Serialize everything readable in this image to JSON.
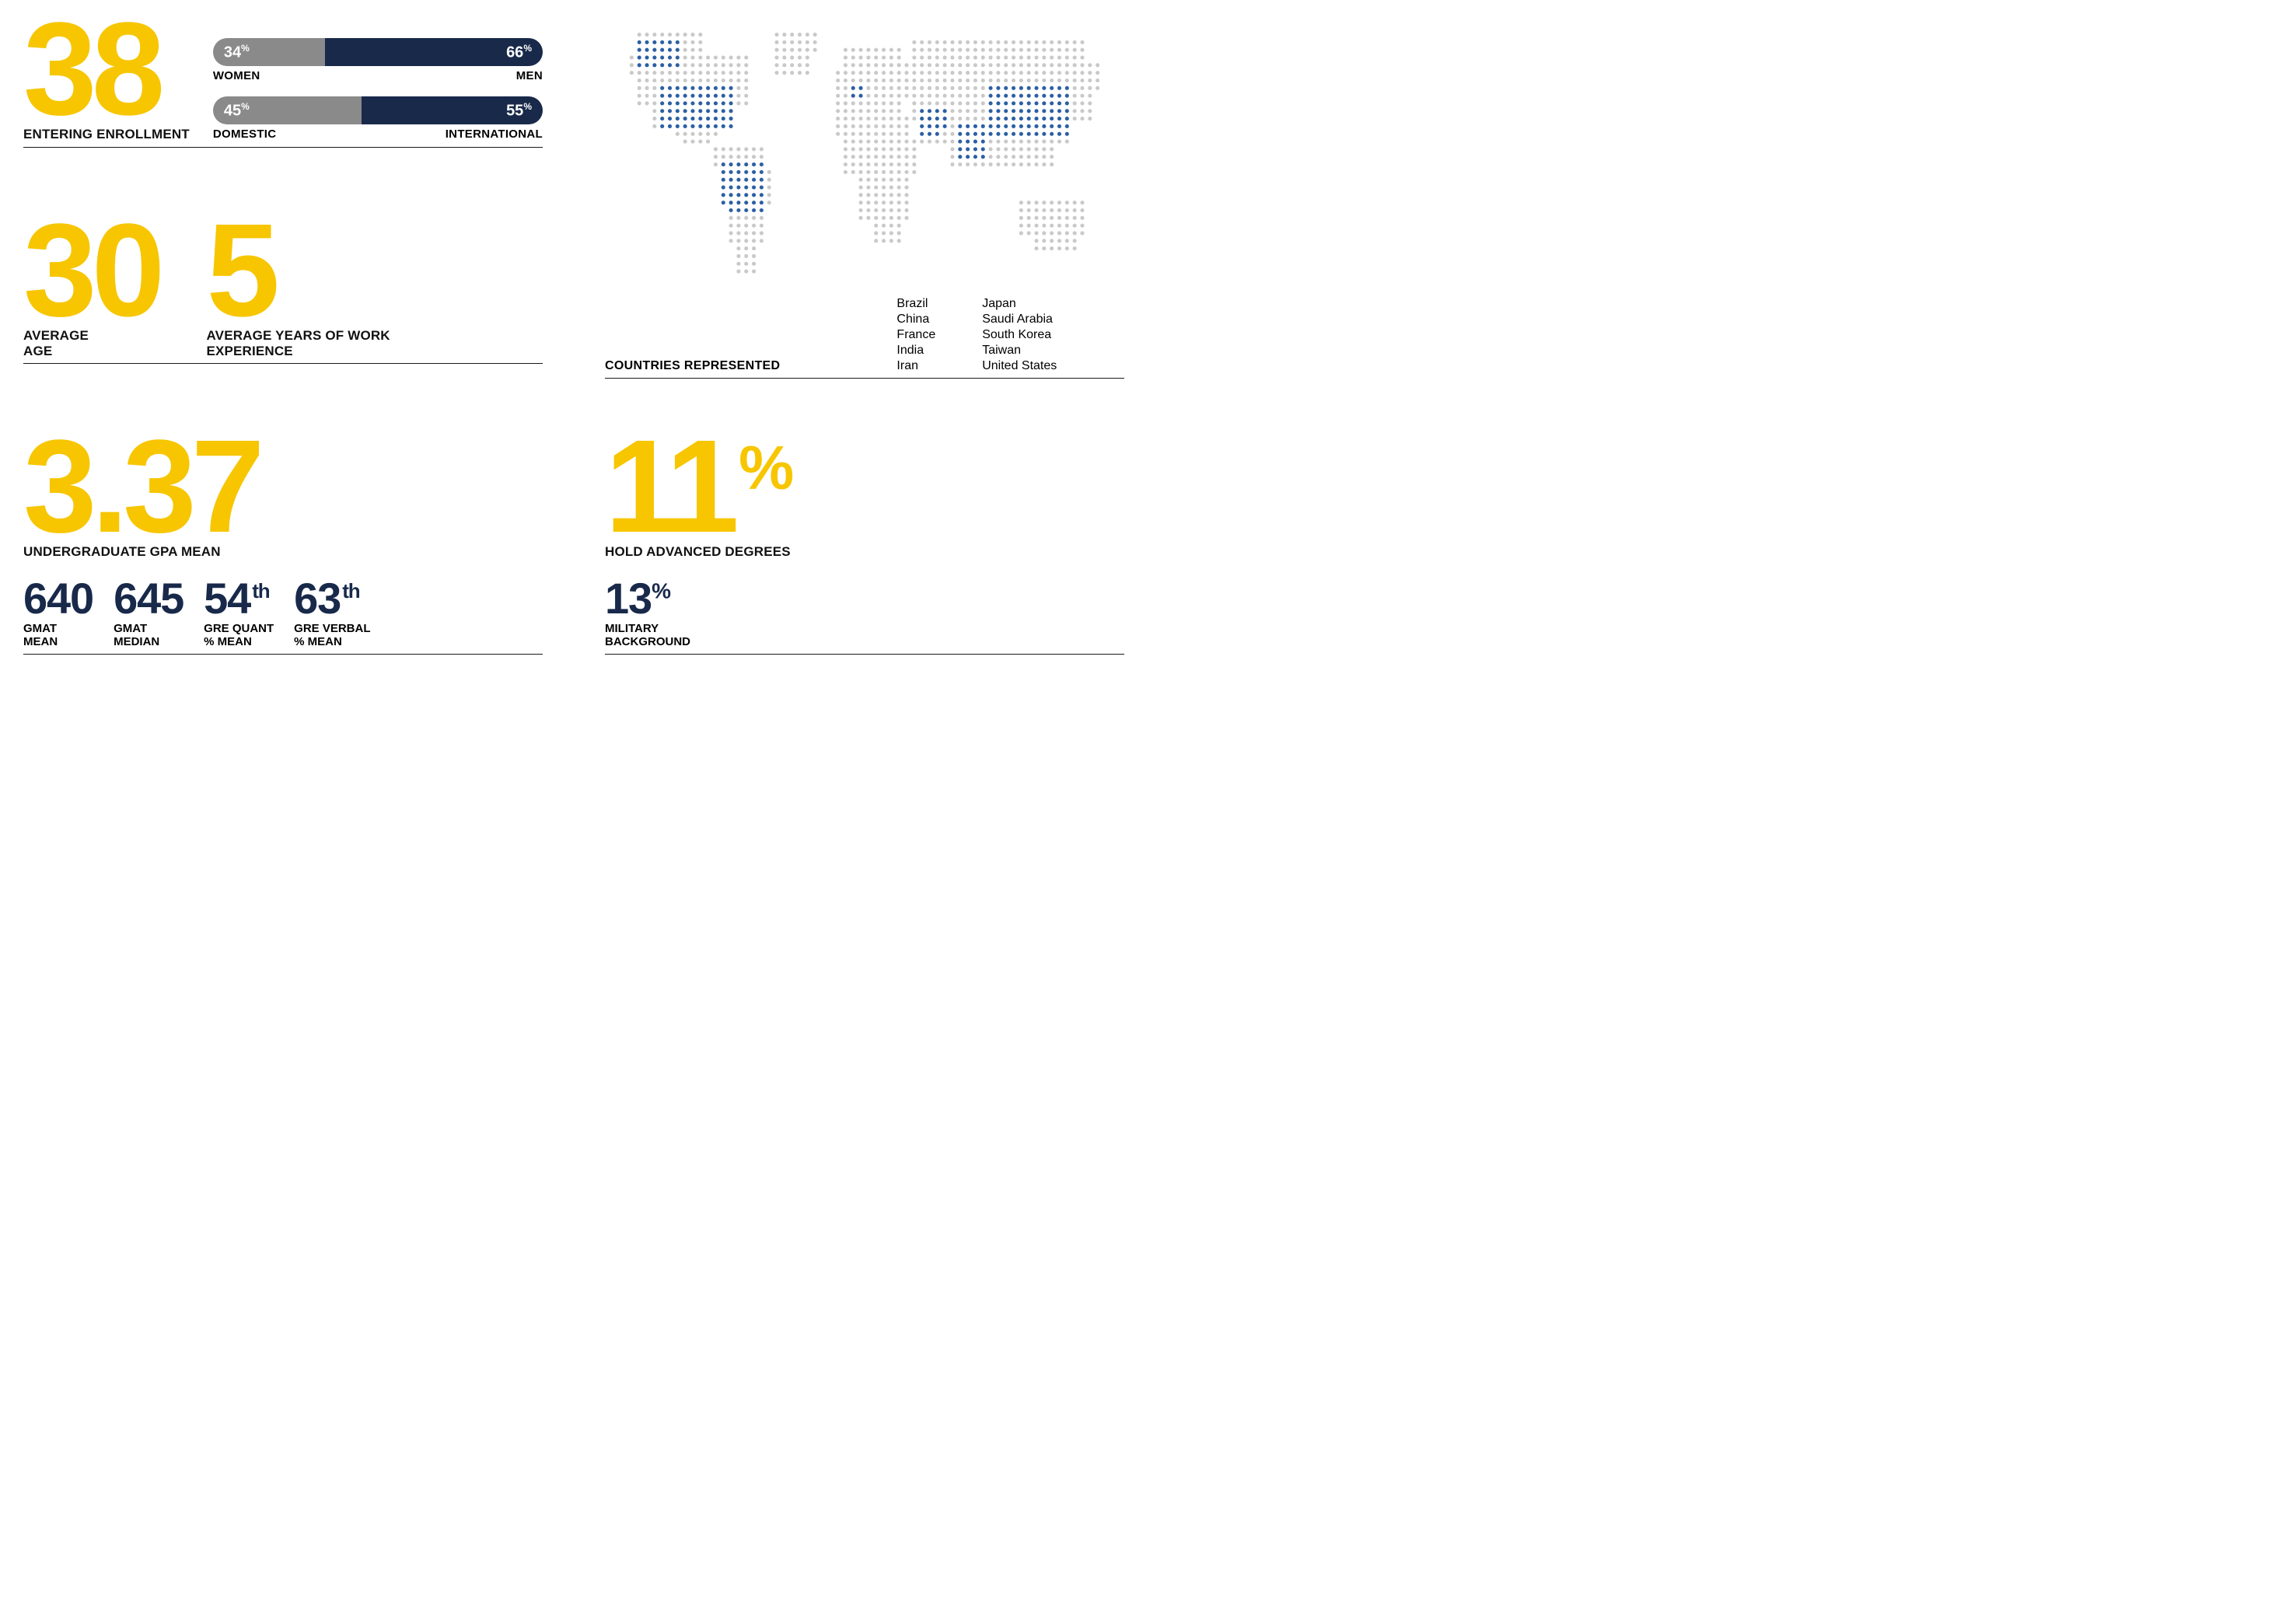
{
  "colors": {
    "accent": "#f7c600",
    "navy": "#18294a",
    "gray": "#8a8a8a",
    "mapDot": "#c9c9c9",
    "mapDotActive": "#2c5fa3",
    "text": "#111111",
    "rule": "#1a1a1a",
    "background": "#ffffff"
  },
  "enrollment": {
    "value": "38",
    "label": "ENTERING ENROLLMENT"
  },
  "bars": [
    {
      "left": {
        "value": "34",
        "unit": "%",
        "label": "WOMEN",
        "widthPct": 34,
        "bg": "#8a8a8a"
      },
      "right": {
        "value": "66",
        "unit": "%",
        "label": "MEN",
        "widthPct": 66,
        "bg": "#18294a"
      }
    },
    {
      "left": {
        "value": "45",
        "unit": "%",
        "label": "DOMESTIC",
        "widthPct": 45,
        "bg": "#8a8a8a"
      },
      "right": {
        "value": "55",
        "unit": "%",
        "label": "INTERNATIONAL",
        "widthPct": 55,
        "bg": "#18294a"
      }
    }
  ],
  "age": {
    "value": "30",
    "label": "AVERAGE\nAGE"
  },
  "experience": {
    "value": "5",
    "label": "AVERAGE YEARS OF WORK EXPERIENCE"
  },
  "map": {
    "label": "COUNTRIES REPRESENTED",
    "dotColor": "#c9c9c9",
    "activeColor": "#2c5fa3",
    "countriesCol1": [
      "Brazil",
      "China",
      "France",
      "India",
      "Iran"
    ],
    "countriesCol2": [
      "Japan",
      "Saudi Arabia",
      "South Korea",
      "Taiwan",
      "United States"
    ]
  },
  "gpa": {
    "value": "3.37",
    "label": "UNDERGRADUATE GPA MEAN"
  },
  "scores": [
    {
      "value": "640",
      "suffix": "",
      "label": "GMAT\nMEAN",
      "color": "#18294a"
    },
    {
      "value": "645",
      "suffix": "",
      "label": "GMAT\nMEDIAN",
      "color": "#18294a"
    },
    {
      "value": "54",
      "suffix": "th",
      "label": "GRE QUANT\n% MEAN",
      "color": "#18294a"
    },
    {
      "value": "63",
      "suffix": "th",
      "label": "GRE VERBAL\n% MEAN",
      "color": "#18294a"
    }
  ],
  "advanced": {
    "value": "11",
    "unit": "%",
    "label": "HOLD ADVANCED DEGREES"
  },
  "military": {
    "value": "13",
    "unit": "%",
    "label": "MILITARY\nBACKGROUND",
    "color": "#18294a"
  }
}
